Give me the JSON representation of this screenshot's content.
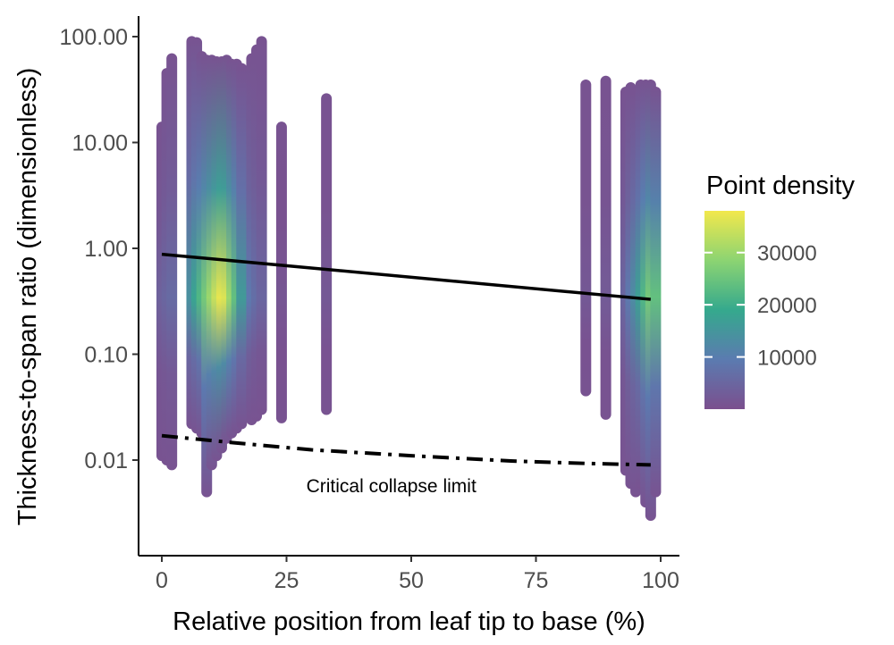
{
  "chart_data": {
    "type": "scatter",
    "xlabel": "Relative position from leaf tip to base (%)",
    "ylabel": "Thickness-to-span ratio (dimensionless)",
    "xlim": [
      -4,
      104
    ],
    "ylim": [
      0.0017,
      150
    ],
    "yscale": "log",
    "x_ticks": [
      0,
      25,
      50,
      75,
      100
    ],
    "x_tick_labels": [
      "0",
      "25",
      "50",
      "75",
      "100"
    ],
    "y_ticks": [
      0.01,
      0.1,
      1,
      10,
      100
    ],
    "y_tick_labels": [
      "0.01",
      "0.10",
      "1.00",
      "10.00",
      "100.00"
    ],
    "grid": false,
    "legend": {
      "title": "Point density",
      "placement": "right",
      "range": [
        0,
        38000
      ],
      "ticks": [
        10000,
        20000,
        30000
      ],
      "tick_labels": [
        "10000",
        "20000",
        "30000"
      ],
      "colors": [
        "#7b4f8e",
        "#5b7bb0",
        "#35a98d",
        "#8cd472",
        "#f2e84c"
      ]
    },
    "point_color_low": "#7b4f8e",
    "columns": [
      {
        "x": 0,
        "ymin": 0.011,
        "ymax": 14,
        "peak_density": 4000
      },
      {
        "x": 1,
        "ymin": 0.01,
        "ymax": 45,
        "peak_density": 5000
      },
      {
        "x": 2,
        "ymin": 0.009,
        "ymax": 62,
        "peak_density": 6000
      },
      {
        "x": 6,
        "ymin": 0.022,
        "ymax": 90,
        "peak_density": 14000
      },
      {
        "x": 7,
        "ymin": 0.02,
        "ymax": 88,
        "peak_density": 18000
      },
      {
        "x": 8,
        "ymin": 0.018,
        "ymax": 65,
        "peak_density": 22000
      },
      {
        "x": 9,
        "ymin": 0.005,
        "ymax": 60,
        "peak_density": 26000
      },
      {
        "x": 10,
        "ymin": 0.009,
        "ymax": 60,
        "peak_density": 30000
      },
      {
        "x": 11,
        "ymin": 0.011,
        "ymax": 58,
        "peak_density": 34000
      },
      {
        "x": 12,
        "ymin": 0.013,
        "ymax": 58,
        "peak_density": 37000
      },
      {
        "x": 13,
        "ymin": 0.016,
        "ymax": 60,
        "peak_density": 36000
      },
      {
        "x": 14,
        "ymin": 0.018,
        "ymax": 55,
        "peak_density": 30000
      },
      {
        "x": 15,
        "ymin": 0.02,
        "ymax": 55,
        "peak_density": 24000
      },
      {
        "x": 16,
        "ymin": 0.022,
        "ymax": 50,
        "peak_density": 16000
      },
      {
        "x": 18,
        "ymin": 0.024,
        "ymax": 62,
        "peak_density": 9000
      },
      {
        "x": 19,
        "ymin": 0.026,
        "ymax": 75,
        "peak_density": 7000
      },
      {
        "x": 20,
        "ymin": 0.03,
        "ymax": 90,
        "peak_density": 5000
      },
      {
        "x": 24,
        "ymin": 0.025,
        "ymax": 14,
        "peak_density": 1500
      },
      {
        "x": 33,
        "ymin": 0.03,
        "ymax": 26,
        "peak_density": 2000
      },
      {
        "x": 85,
        "ymin": 0.045,
        "ymax": 35,
        "peak_density": 2000
      },
      {
        "x": 89,
        "ymin": 0.027,
        "ymax": 38,
        "peak_density": 2500
      },
      {
        "x": 93,
        "ymin": 0.008,
        "ymax": 30,
        "peak_density": 5000
      },
      {
        "x": 94,
        "ymin": 0.006,
        "ymax": 33,
        "peak_density": 9000
      },
      {
        "x": 95,
        "ymin": 0.005,
        "ymax": 30,
        "peak_density": 13000
      },
      {
        "x": 96,
        "ymin": 0.006,
        "ymax": 35,
        "peak_density": 17000
      },
      {
        "x": 97,
        "ymin": 0.004,
        "ymax": 35,
        "peak_density": 22000
      },
      {
        "x": 98,
        "ymin": 0.003,
        "ymax": 35,
        "peak_density": 26000
      },
      {
        "x": 99,
        "ymin": 0.005,
        "ymax": 30,
        "peak_density": 24000
      }
    ],
    "trend_line": {
      "style": "solid",
      "x": [
        0,
        98
      ],
      "y": [
        0.88,
        0.33
      ]
    },
    "collapse_line": {
      "style": "dash-dot",
      "x": [
        0,
        15,
        30,
        50,
        70,
        85,
        98
      ],
      "y": [
        0.017,
        0.0145,
        0.0125,
        0.011,
        0.0098,
        0.0093,
        0.009
      ]
    },
    "annotations": [
      {
        "text": "Critical collapse limit",
        "x": 46,
        "y": 0.0057
      }
    ]
  }
}
